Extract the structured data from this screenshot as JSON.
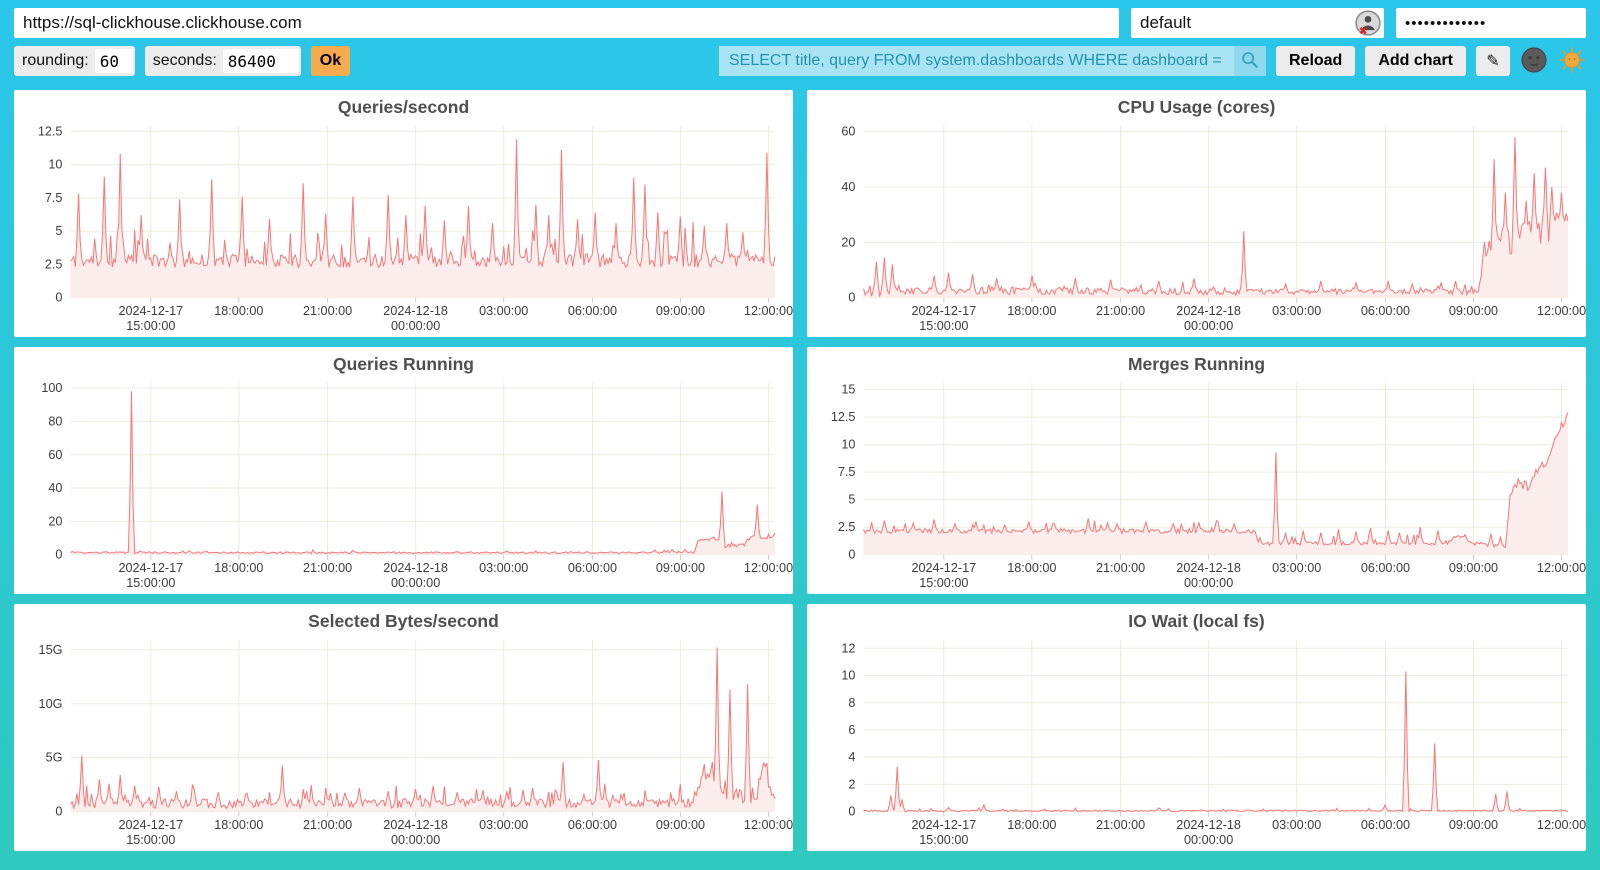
{
  "address_bar": {
    "url": "https://sql-clickhouse.clickhouse.com",
    "user": "default",
    "password_masked": "•••••••••••••"
  },
  "controls": {
    "rounding_label": "rounding:",
    "rounding_value": "60",
    "seconds_label": "seconds:",
    "seconds_value": "86400",
    "ok_label": "Ok",
    "search_value": "SELECT title, query FROM system.dashboards WHERE dashboard = '",
    "reload_label": "Reload",
    "add_chart_label": "Add chart",
    "edit_button_glyph": "✎"
  },
  "colors": {
    "background_top": "#2BC6EB",
    "background_bottom": "#2FC9BE",
    "series_line": "#F47878",
    "series_fill": "#FCEDED",
    "grid_line": "#ECEBDF",
    "ok_button": "#F5AB4E",
    "search_bg": "#A9E4F4",
    "search_text": "#2193AE",
    "button_bg": "#ECECEC"
  },
  "chart_data": {
    "type": "area",
    "shared_x_axis": {
      "ticks": [
        {
          "f": 0.114,
          "l1": "2024-12-17",
          "l2": "15:00:00"
        },
        {
          "f": 0.239,
          "l1": "18:00:00"
        },
        {
          "f": 0.365,
          "l1": "21:00:00"
        },
        {
          "f": 0.49,
          "l1": "2024-12-18",
          "l2": "00:00:00"
        },
        {
          "f": 0.615,
          "l1": "03:00:00"
        },
        {
          "f": 0.741,
          "l1": "06:00:00"
        },
        {
          "f": 0.866,
          "l1": "09:00:00"
        },
        {
          "f": 0.991,
          "l1": "12:00:00"
        }
      ]
    },
    "charts": [
      {
        "title": "Queries/second",
        "ylim": [
          0,
          12.9
        ],
        "yticks": [
          {
            "v": 0,
            "label": "0"
          },
          {
            "v": 2.5,
            "label": "2.5"
          },
          {
            "v": 5,
            "label": "5"
          },
          {
            "v": 7.5,
            "label": "7.5"
          },
          {
            "v": 10,
            "label": "10"
          },
          {
            "v": 12.5,
            "label": "12.5"
          }
        ],
        "seed": 11,
        "n": 440,
        "base": [
          [
            0,
            2.75
          ],
          [
            1,
            2.8
          ]
        ],
        "noise_zones": [
          [
            0,
            1,
            0.5
          ]
        ],
        "minor": {
          "p": 0.12,
          "h": 2.6
        },
        "spikes": [
          [
            0.012,
            7.8
          ],
          [
            0.048,
            9.1
          ],
          [
            0.07,
            10.8
          ],
          [
            0.1,
            6.2
          ],
          [
            0.155,
            7.4
          ],
          [
            0.2,
            8.9
          ],
          [
            0.243,
            7.6
          ],
          [
            0.282,
            5.9
          ],
          [
            0.33,
            8.6
          ],
          [
            0.362,
            6.3
          ],
          [
            0.4,
            7.6
          ],
          [
            0.45,
            7.7
          ],
          [
            0.475,
            6.2
          ],
          [
            0.503,
            6.9
          ],
          [
            0.53,
            5.8
          ],
          [
            0.565,
            6.9
          ],
          [
            0.6,
            5.6
          ],
          [
            0.633,
            11.9
          ],
          [
            0.66,
            7.0
          ],
          [
            0.678,
            6.2
          ],
          [
            0.697,
            11.1
          ],
          [
            0.72,
            5.9
          ],
          [
            0.745,
            6.4
          ],
          [
            0.775,
            5.6
          ],
          [
            0.8,
            9.0
          ],
          [
            0.815,
            8.5
          ],
          [
            0.833,
            6.4
          ],
          [
            0.865,
            6.1
          ],
          [
            0.9,
            5.4
          ],
          [
            0.932,
            5.6
          ],
          [
            0.955,
            4.9
          ],
          [
            0.988,
            10.9
          ]
        ]
      },
      {
        "title": "CPU Usage (cores)",
        "ylim": [
          0,
          62
        ],
        "yticks": [
          {
            "v": 0,
            "label": "0"
          },
          {
            "v": 20,
            "label": "20"
          },
          {
            "v": 40,
            "label": "40"
          },
          {
            "v": 60,
            "label": "60"
          }
        ],
        "seed": 22,
        "n": 440,
        "base": [
          [
            0,
            2.6
          ],
          [
            0.875,
            2.0
          ],
          [
            0.882,
            15
          ],
          [
            0.9,
            19
          ],
          [
            0.95,
            24
          ],
          [
            1,
            27
          ]
        ],
        "noise_zones": [
          [
            0,
            0.06,
            2.8
          ],
          [
            0.06,
            0.54,
            1.3
          ],
          [
            0.54,
            0.875,
            1.0
          ],
          [
            0.875,
            1,
            5.5
          ]
        ],
        "minor": {
          "p": 0.1,
          "h": 3.0
        },
        "spikes": [
          [
            0.018,
            13
          ],
          [
            0.03,
            14.5
          ],
          [
            0.04,
            12
          ],
          [
            0.1,
            8
          ],
          [
            0.12,
            9
          ],
          [
            0.155,
            8.5
          ],
          [
            0.19,
            7
          ],
          [
            0.24,
            8
          ],
          [
            0.3,
            7
          ],
          [
            0.35,
            6.5
          ],
          [
            0.42,
            6
          ],
          [
            0.47,
            7
          ],
          [
            0.54,
            24
          ],
          [
            0.6,
            5
          ],
          [
            0.65,
            6
          ],
          [
            0.7,
            5.5
          ],
          [
            0.745,
            6
          ],
          [
            0.78,
            5
          ],
          [
            0.82,
            5.5
          ],
          [
            0.84,
            6
          ],
          [
            0.895,
            50
          ],
          [
            0.912,
            38
          ],
          [
            0.925,
            58
          ],
          [
            0.94,
            35
          ],
          [
            0.952,
            45
          ],
          [
            0.968,
            47
          ],
          [
            0.978,
            40
          ],
          [
            0.99,
            38
          ]
        ]
      },
      {
        "title": "Queries Running",
        "ylim": [
          0,
          103
        ],
        "yticks": [
          {
            "v": 0,
            "label": "0"
          },
          {
            "v": 20,
            "label": "20"
          },
          {
            "v": 40,
            "label": "40"
          },
          {
            "v": 60,
            "label": "60"
          },
          {
            "v": 80,
            "label": "80"
          },
          {
            "v": 100,
            "label": "100"
          }
        ],
        "seed": 33,
        "n": 440,
        "base": [
          [
            0,
            1.2
          ],
          [
            0.885,
            1.2
          ],
          [
            0.892,
            9
          ],
          [
            0.92,
            9.5
          ],
          [
            0.928,
            5
          ],
          [
            0.955,
            5.5
          ],
          [
            0.963,
            10
          ],
          [
            0.99,
            10
          ],
          [
            1,
            12
          ]
        ],
        "noise_zones": [
          [
            0,
            0.885,
            0.5
          ],
          [
            0.885,
            1,
            1.3
          ]
        ],
        "minor": {
          "p": 0.05,
          "h": 1.2
        },
        "spikes": [
          [
            0.086,
            98
          ],
          [
            0.4,
            2.5
          ],
          [
            0.62,
            2.2
          ],
          [
            0.83,
            2.8
          ],
          [
            0.855,
            3.0
          ],
          [
            0.872,
            3.0
          ],
          [
            0.925,
            38
          ],
          [
            0.975,
            30
          ]
        ]
      },
      {
        "title": "Merges Running",
        "ylim": [
          0,
          15.6
        ],
        "yticks": [
          {
            "v": 0,
            "label": "0"
          },
          {
            "v": 2.5,
            "label": "2.5"
          },
          {
            "v": 5,
            "label": "5"
          },
          {
            "v": 7.5,
            "label": "7.5"
          },
          {
            "v": 10,
            "label": "10"
          },
          {
            "v": 12.5,
            "label": "12.5"
          },
          {
            "v": 15,
            "label": "15"
          }
        ],
        "seed": 44,
        "n": 440,
        "base": [
          [
            0,
            2.15
          ],
          [
            0.555,
            2.15
          ],
          [
            0.562,
            1.0
          ],
          [
            0.83,
            1.05
          ],
          [
            0.838,
            1.7
          ],
          [
            0.855,
            1.7
          ],
          [
            0.862,
            1.0
          ],
          [
            0.88,
            1.0
          ],
          [
            0.885,
            0.8
          ],
          [
            0.912,
            0.8
          ],
          [
            0.917,
            5.2
          ],
          [
            0.928,
            6.5
          ],
          [
            0.945,
            6.2
          ],
          [
            0.955,
            7.3
          ],
          [
            0.965,
            8.2
          ],
          [
            0.975,
            9.2
          ],
          [
            0.982,
            10.8
          ],
          [
            0.99,
            11.6
          ],
          [
            1,
            12.7
          ]
        ],
        "noise_zones": [
          [
            0,
            0.555,
            0.22
          ],
          [
            0.555,
            0.912,
            0.15
          ],
          [
            0.912,
            1,
            0.5
          ]
        ],
        "minor": {
          "p": 0.08,
          "h": 0.9
        },
        "spikes": [
          [
            0.03,
            3.1
          ],
          [
            0.07,
            2.9
          ],
          [
            0.1,
            3.2
          ],
          [
            0.13,
            2.8
          ],
          [
            0.16,
            3.0
          ],
          [
            0.2,
            2.7
          ],
          [
            0.235,
            3.0
          ],
          [
            0.27,
            2.8
          ],
          [
            0.32,
            3.3
          ],
          [
            0.36,
            2.8
          ],
          [
            0.4,
            3.0
          ],
          [
            0.44,
            2.8
          ],
          [
            0.475,
            2.9
          ],
          [
            0.5,
            3.1
          ],
          [
            0.527,
            2.8
          ],
          [
            0.585,
            9.3
          ],
          [
            0.6,
            2.0
          ],
          [
            0.625,
            2.2
          ],
          [
            0.65,
            2.0
          ],
          [
            0.675,
            2.3
          ],
          [
            0.7,
            2.1
          ],
          [
            0.72,
            2.4
          ],
          [
            0.745,
            2.2
          ],
          [
            0.76,
            2.0
          ],
          [
            0.79,
            2.5
          ],
          [
            0.815,
            2.2
          ],
          [
            0.89,
            1.9
          ],
          [
            0.905,
            1.6
          ]
        ]
      },
      {
        "title": "Selected Bytes/second",
        "ylim": [
          0,
          15.9
        ],
        "yticks": [
          {
            "v": 0,
            "label": "0"
          },
          {
            "v": 5,
            "label": "5G"
          },
          {
            "v": 10,
            "label": "10G"
          },
          {
            "v": 15,
            "label": "15G"
          }
        ],
        "seed": 55,
        "n": 440,
        "base": [
          [
            0,
            0.75
          ],
          [
            0.885,
            0.8
          ],
          [
            0.89,
            2.2
          ],
          [
            0.9,
            3.8
          ],
          [
            0.908,
            3.4
          ],
          [
            0.915,
            1.8
          ],
          [
            0.975,
            1.4
          ],
          [
            0.98,
            3.5
          ],
          [
            0.985,
            4.3
          ],
          [
            0.99,
            2.2
          ],
          [
            1,
            1.4
          ]
        ],
        "noise_zones": [
          [
            0,
            0.885,
            0.45
          ],
          [
            0.885,
            1,
            0.8
          ]
        ],
        "minor": {
          "p": 0.1,
          "h": 1.6
        },
        "spikes": [
          [
            0.015,
            5.2
          ],
          [
            0.04,
            3.0
          ],
          [
            0.055,
            2.6
          ],
          [
            0.07,
            3.4
          ],
          [
            0.09,
            2.4
          ],
          [
            0.125,
            2.3
          ],
          [
            0.15,
            1.9
          ],
          [
            0.175,
            2.1
          ],
          [
            0.21,
            1.8
          ],
          [
            0.25,
            1.7
          ],
          [
            0.3,
            4.3
          ],
          [
            0.335,
            1.9
          ],
          [
            0.37,
            1.7
          ],
          [
            0.41,
            2.2
          ],
          [
            0.45,
            1.9
          ],
          [
            0.49,
            2.1
          ],
          [
            0.515,
            2.4
          ],
          [
            0.55,
            1.8
          ],
          [
            0.585,
            2.0
          ],
          [
            0.62,
            1.9
          ],
          [
            0.655,
            2.2
          ],
          [
            0.69,
            1.8
          ],
          [
            0.7,
            4.6
          ],
          [
            0.73,
            1.6
          ],
          [
            0.75,
            4.8
          ],
          [
            0.77,
            1.5
          ],
          [
            0.918,
            15.2
          ],
          [
            0.937,
            11.3
          ],
          [
            0.962,
            11.8
          ]
        ]
      },
      {
        "title": "IO Wait (local fs)",
        "ylim": [
          0,
          12.6
        ],
        "yticks": [
          {
            "v": 0,
            "label": "0"
          },
          {
            "v": 2,
            "label": "2"
          },
          {
            "v": 4,
            "label": "4"
          },
          {
            "v": 6,
            "label": "6"
          },
          {
            "v": 8,
            "label": "8"
          },
          {
            "v": 10,
            "label": "10"
          },
          {
            "v": 12,
            "label": "12"
          }
        ],
        "seed": 66,
        "n": 440,
        "base": [
          [
            0,
            0.06
          ],
          [
            1,
            0.07
          ]
        ],
        "noise_zones": [
          [
            0,
            1,
            0.05
          ]
        ],
        "minor": {
          "p": 0.04,
          "h": 0.25
        },
        "spikes": [
          [
            0.038,
            1.2
          ],
          [
            0.048,
            3.3
          ],
          [
            0.054,
            0.9
          ],
          [
            0.12,
            0.3
          ],
          [
            0.17,
            0.5
          ],
          [
            0.59,
            0.12
          ],
          [
            0.74,
            0.5
          ],
          [
            0.77,
            10.3
          ],
          [
            0.81,
            5.0
          ],
          [
            0.898,
            1.3
          ],
          [
            0.913,
            1.5
          ]
        ]
      }
    ]
  }
}
